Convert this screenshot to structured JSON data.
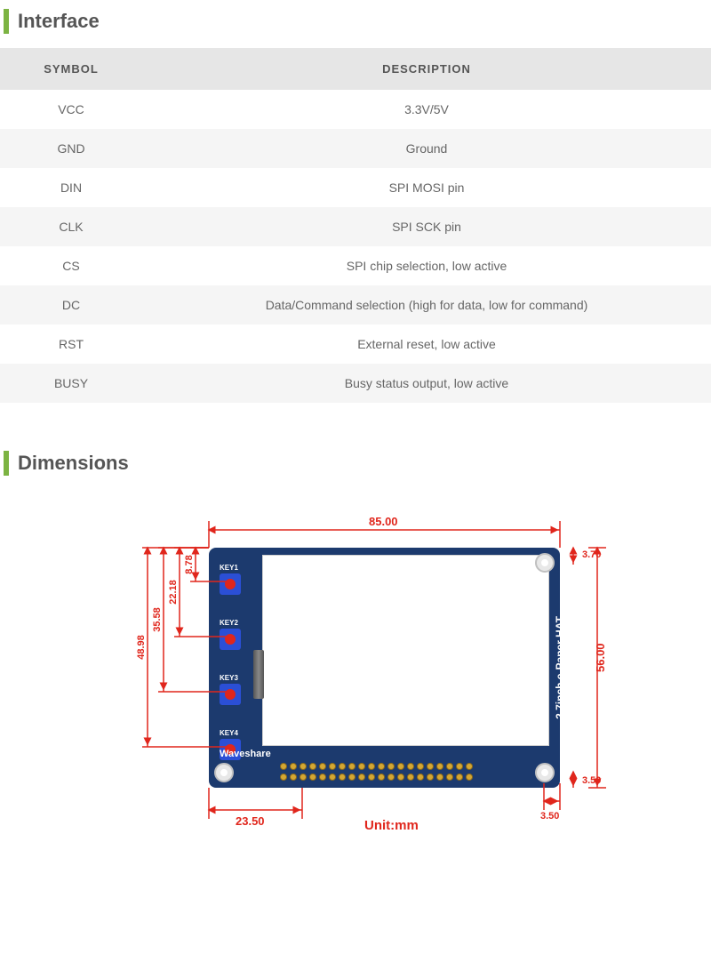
{
  "sections": {
    "interface": {
      "title": "Interface"
    },
    "dimensions": {
      "title": "Dimensions"
    }
  },
  "colors": {
    "accent_green": "#7cb342",
    "dim_red": "#e0261c",
    "board_blue": "#1c3a6e",
    "key_blue": "#2b4fd6",
    "pin_gold": "#d4a733",
    "header_grey": "#e6e6e6",
    "row_alt_grey": "#f5f5f5",
    "text_grey": "#666666"
  },
  "interface_table": {
    "headers": {
      "symbol": "SYMBOL",
      "description": "DESCRIPTION"
    },
    "rows": [
      {
        "symbol": "VCC",
        "description": "3.3V/5V"
      },
      {
        "symbol": "GND",
        "description": "Ground"
      },
      {
        "symbol": "DIN",
        "description": "SPI MOSI pin"
      },
      {
        "symbol": "CLK",
        "description": "SPI SCK pin"
      },
      {
        "symbol": "CS",
        "description": "SPI chip selection, low active"
      },
      {
        "symbol": "DC",
        "description": "Data/Command selection (high for data, low for command)"
      },
      {
        "symbol": "RST",
        "description": "External reset, low active"
      },
      {
        "symbol": "BUSY",
        "description": "Busy status output, low active"
      }
    ]
  },
  "board": {
    "brand": "Waveshare",
    "product": "2.7inch e-Paper HAT",
    "keys": [
      "KEY1",
      "KEY2",
      "KEY3",
      "KEY4"
    ],
    "pin_count": 20
  },
  "dimensions": {
    "unit_label": "Unit:mm",
    "width": "85.00",
    "height": "56.00",
    "corner_top": "3.70",
    "corner_bottom_x": "3.50",
    "corner_bottom_y": "3.50",
    "left_offset": "23.50",
    "key_y": [
      "8.78",
      "22.18",
      "35.58",
      "48.98"
    ]
  }
}
